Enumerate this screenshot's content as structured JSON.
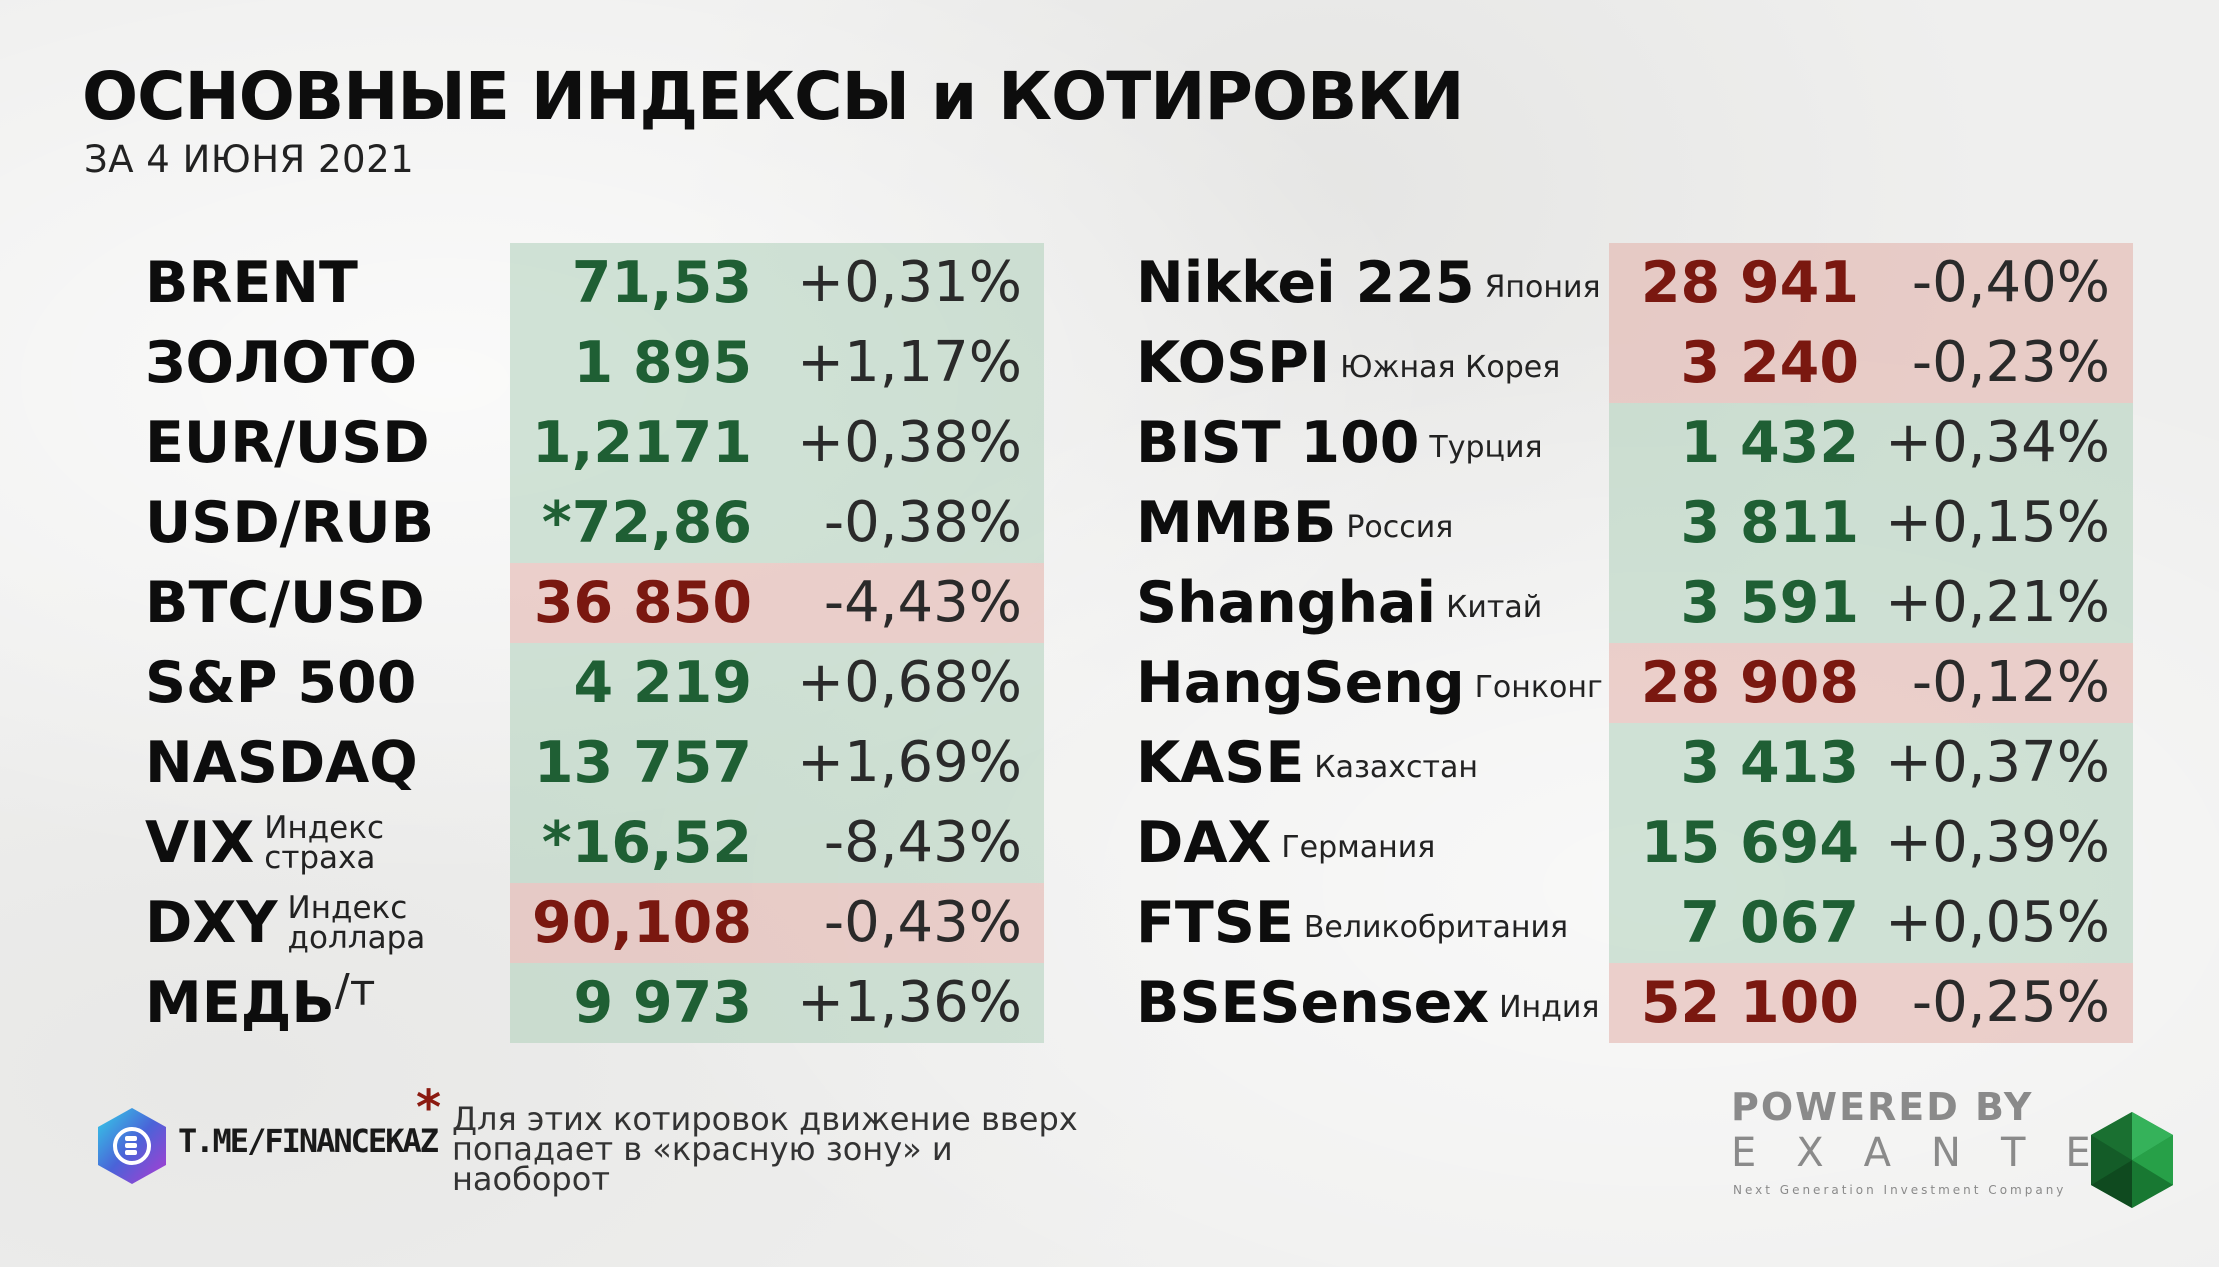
{
  "header": {
    "title": "ОСНОВНЫЕ ИНДЕКСЫ и КОТИРОВКИ",
    "subtitle": "ЗА 4 ИЮНЯ 2021"
  },
  "left_rows": [
    {
      "name": "BRENT",
      "sub": "",
      "unit": "",
      "value": "71,53",
      "change": "+0,31%",
      "direction": "up"
    },
    {
      "name": "ЗОЛОТО",
      "sub": "",
      "unit": "",
      "value": "1 895",
      "change": "+1,17%",
      "direction": "up"
    },
    {
      "name": "EUR/USD",
      "sub": "",
      "unit": "",
      "value": "1,2171",
      "change": "+0,38%",
      "direction": "up"
    },
    {
      "name": "USD/RUB",
      "sub": "",
      "unit": "",
      "value": "*72,86",
      "change": "-0,38%",
      "direction": "up"
    },
    {
      "name": "BTC/USD",
      "sub": "",
      "unit": "",
      "value": "36 850",
      "change": "-4,43%",
      "direction": "down"
    },
    {
      "name": "S&P 500",
      "sub": "",
      "unit": "",
      "value": "4 219",
      "change": "+0,68%",
      "direction": "up"
    },
    {
      "name": "NASDAQ",
      "sub": "",
      "unit": "",
      "value": "13 757",
      "change": "+1,69%",
      "direction": "up"
    },
    {
      "name": "VIX",
      "sub": "Индекс страха",
      "unit": "",
      "value": "*16,52",
      "change": "-8,43%",
      "direction": "up"
    },
    {
      "name": "DXY",
      "sub": "Индекс доллара",
      "unit": "",
      "value": "90,108",
      "change": "-0,43%",
      "direction": "down"
    },
    {
      "name": "МЕДЬ",
      "sub": "",
      "unit": "/т",
      "value": "9 973",
      "change": "+1,36%",
      "direction": "up"
    }
  ],
  "right_rows": [
    {
      "name": "Nikkei 225",
      "sub": "Япония",
      "value": "28 941",
      "change": "-0,40%",
      "direction": "down"
    },
    {
      "name": "KOSPI",
      "sub": "Южная Корея",
      "value": "3 240",
      "change": "-0,23%",
      "direction": "down"
    },
    {
      "name": "BIST 100",
      "sub": "Турция",
      "value": "1 432",
      "change": "+0,34%",
      "direction": "up"
    },
    {
      "name": "ММВБ",
      "sub": "Россия",
      "value": "3 811",
      "change": "+0,15%",
      "direction": "up"
    },
    {
      "name": "Shanghai",
      "sub": "Китай",
      "value": "3 591",
      "change": "+0,21%",
      "direction": "up"
    },
    {
      "name": "HangSeng",
      "sub": "Гонконг",
      "value": "28 908",
      "change": "-0,12%",
      "direction": "down"
    },
    {
      "name": "KASE",
      "sub": "Казахстан",
      "value": "3 413",
      "change": "+0,37%",
      "direction": "up"
    },
    {
      "name": "DAX",
      "sub": "Германия",
      "value": "15 694",
      "change": "+0,39%",
      "direction": "up"
    },
    {
      "name": "FTSE",
      "sub": "Великобритания",
      "value": "7 067",
      "change": "+0,05%",
      "direction": "up"
    },
    {
      "name": "BSESensex",
      "sub": "Индия",
      "value": "52 100",
      "change": "-0,25%",
      "direction": "down"
    }
  ],
  "footer": {
    "channel": "T.ME/FINANCEKAZ",
    "asterisk": "*",
    "note": "Для этих котировок движение вверх попадает в «красную зону» и наоборот",
    "powered_by": "POWERED BY",
    "brand": "EXANTE",
    "tagline": "Next Generation Investment Company"
  },
  "colors": {
    "up_text": "#1f5f34",
    "down_text": "#7a1810",
    "up_bg": "#afd0ba",
    "down_bg": "#e2afa8"
  }
}
